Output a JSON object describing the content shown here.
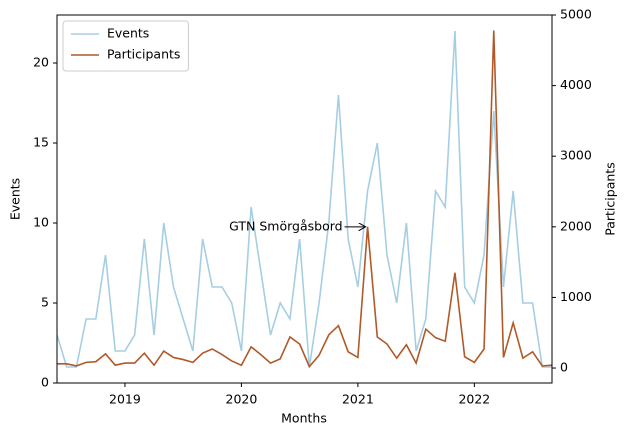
{
  "chart_data": {
    "type": "line",
    "x_label": "Months",
    "y_label": "Events",
    "y2_label": "Participants",
    "x": [
      2018.4167,
      2018.5,
      2018.5833,
      2018.6667,
      2018.75,
      2018.8333,
      2018.9167,
      2019,
      2019.0833,
      2019.1667,
      2019.25,
      2019.3333,
      2019.4167,
      2019.5,
      2019.5833,
      2019.6667,
      2019.75,
      2019.8333,
      2019.9167,
      2020,
      2020.0833,
      2020.1667,
      2020.25,
      2020.3333,
      2020.4167,
      2020.5,
      2020.5833,
      2020.6667,
      2020.75,
      2020.8333,
      2020.9167,
      2021,
      2021.0833,
      2021.1667,
      2021.25,
      2021.3333,
      2021.4167,
      2021.5,
      2021.5833,
      2021.6667,
      2021.75,
      2021.8333,
      2021.9167,
      2022,
      2022.0833,
      2022.1667,
      2022.25,
      2022.3333,
      2022.4167,
      2022.5,
      2022.5833,
      2022.6667
    ],
    "series": [
      {
        "name": "Events",
        "color": "#a6cee3",
        "axis": "y",
        "values": [
          3,
          1,
          1,
          4,
          4,
          8,
          2,
          2,
          3,
          9,
          3,
          10,
          6,
          4,
          2,
          9,
          6,
          6,
          5,
          2,
          11,
          7,
          3,
          5,
          4,
          9,
          1,
          5,
          10,
          18,
          9,
          6,
          12,
          15,
          8,
          5,
          10,
          2,
          4,
          12,
          11,
          22,
          6,
          5,
          8,
          17,
          6,
          12,
          5,
          5,
          1,
          1
        ]
      },
      {
        "name": "Participants",
        "color": "#b15928",
        "axis": "y2",
        "values": [
          60,
          60,
          30,
          80,
          90,
          200,
          40,
          70,
          70,
          210,
          40,
          240,
          150,
          120,
          80,
          210,
          270,
          190,
          100,
          40,
          300,
          190,
          70,
          130,
          440,
          340,
          20,
          180,
          470,
          600,
          230,
          150,
          2000,
          440,
          340,
          140,
          330,
          70,
          550,
          430,
          380,
          1350,
          160,
          80,
          270,
          4780,
          150,
          640,
          140,
          230,
          30,
          40
        ]
      }
    ],
    "xlim": [
      2018.4167,
      2022.6667
    ],
    "xticks": [
      2019,
      2020,
      2021,
      2022
    ],
    "ylim": [
      0,
      23
    ],
    "yticks": [
      0,
      5,
      10,
      15,
      20
    ],
    "y2lim": [
      -212,
      5000
    ],
    "y2ticks": [
      0,
      1000,
      2000,
      3000,
      4000,
      5000
    ],
    "legend": "upper left",
    "annotations": [
      {
        "text": "GTN Smörgåsbord",
        "x": 2021.0833,
        "y": 2000,
        "axis": "y2"
      }
    ]
  }
}
